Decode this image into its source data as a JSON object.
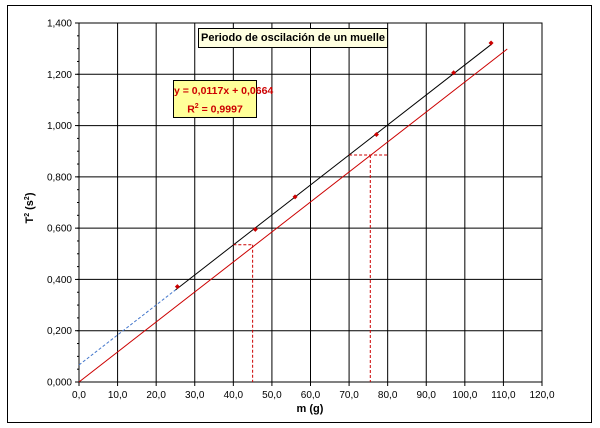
{
  "chart_data": {
    "type": "scatter",
    "title": "Periodo de oscilación de un muelle",
    "xlabel": "m (g)",
    "ylabel": "T",
    "ylabel_sup": "2",
    "ylabel_units": "(s",
    "ylabel_units_sup": "2",
    "ylabel_close": ")",
    "xlim": [
      0,
      120
    ],
    "ylim": [
      0,
      1.4
    ],
    "x_ticks": [
      "0,0",
      "10,0",
      "20,0",
      "30,0",
      "40,0",
      "50,0",
      "60,0",
      "70,0",
      "80,0",
      "90,0",
      "100,0",
      "110,0",
      "120,0"
    ],
    "y_ticks": [
      "0,000",
      "0,200",
      "0,400",
      "0,600",
      "0,800",
      "1,000",
      "1,200",
      "1,400"
    ],
    "grid": true,
    "series": [
      {
        "points": [
          [
            25.5,
            0.372
          ],
          [
            45.7,
            0.595
          ],
          [
            56.0,
            0.722
          ],
          [
            77.1,
            0.965
          ],
          [
            97.1,
            1.206
          ],
          [
            106.8,
            1.322
          ]
        ],
        "color": "#cc0000"
      }
    ],
    "trendline": {
      "slope": 0.0117,
      "intercept": 0.0664,
      "range": [
        0,
        107
      ],
      "dashed_until": 25,
      "color": "#000000",
      "dashed_color": "#4477cc",
      "equation_label": "y = 0,0117x + 0,0664",
      "r2_label": "R",
      "r2_sup": "2",
      "r2_value": " = 0,9997"
    },
    "parallel_line": {
      "slope": 0.0117,
      "intercept": 0.0,
      "range": [
        0,
        111
      ],
      "color": "#cc0000"
    },
    "guides": [
      {
        "x": 45.0,
        "y": 0.535,
        "x_from": 40.0
      },
      {
        "x": 75.5,
        "y": 0.885,
        "x_from": 70.0,
        "x_to": 80.0
      }
    ],
    "colors": {
      "marker": "#cc0000",
      "title_bg": "#ffffe0",
      "equation_bg": "#ffff99",
      "equation_text": "#cc0000"
    }
  }
}
